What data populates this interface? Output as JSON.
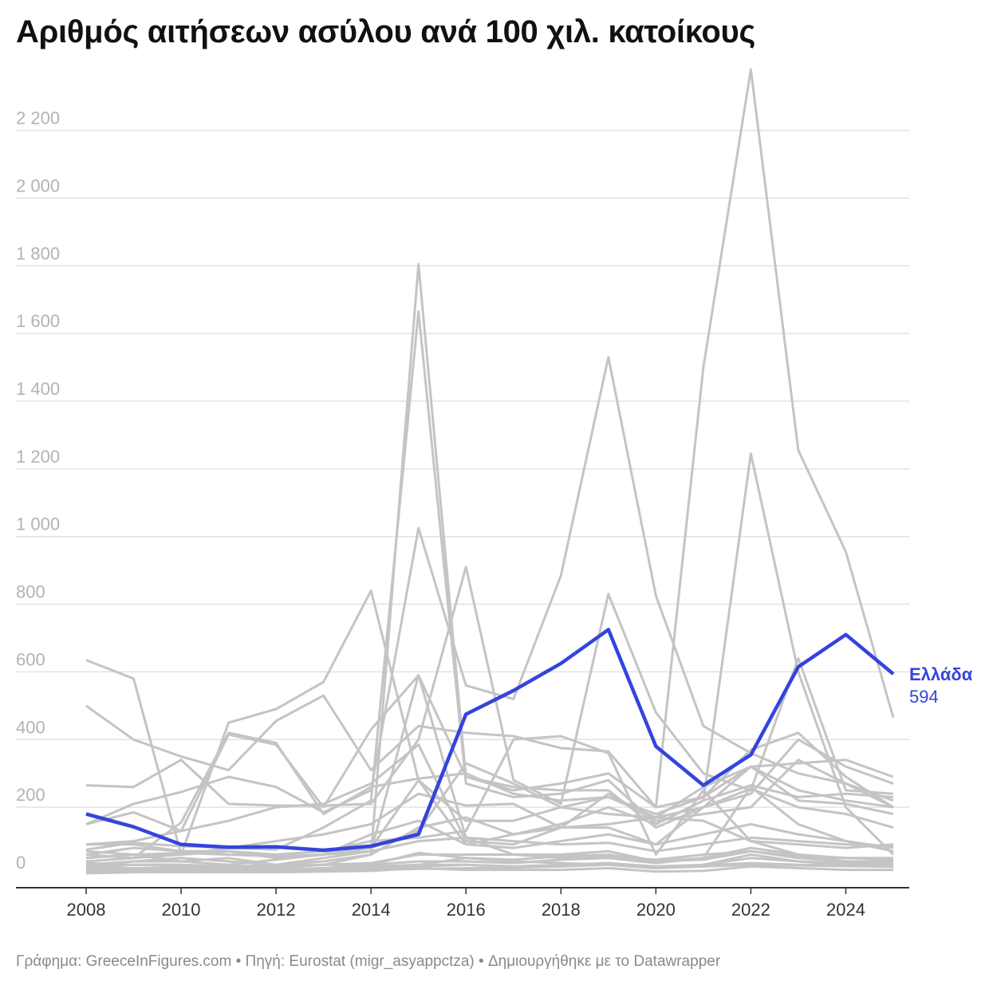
{
  "title": "Αριθμός αιτήσεων ασύλου ανά 100 χιλ. κατοίκους",
  "footer": "Γράφημα: GreeceInFigures.com • Πηγή: Eurostat (migr_asyappctza) • Δημιουργήθηκε με το Datawrapper",
  "colors": {
    "highlight": "#3344dd",
    "background_lines": "#c4c4c4",
    "grid": "#e2e2e2",
    "axis": "#333333"
  },
  "chart_data": {
    "type": "line",
    "x": [
      2008,
      2009,
      2010,
      2011,
      2012,
      2013,
      2014,
      2015,
      2016,
      2017,
      2018,
      2019,
      2020,
      2021,
      2022,
      2023,
      2024,
      2025
    ],
    "xticks": [
      "2008",
      "2010",
      "2012",
      "2014",
      "2016",
      "2018",
      "2020",
      "2022",
      "2024"
    ],
    "yticks": [
      "0",
      "200",
      "400",
      "600",
      "800",
      "1 000",
      "1 200",
      "1 400",
      "1 600",
      "1 800",
      "2 000",
      "2 200"
    ],
    "ylim": [
      -40,
      2400
    ],
    "grid": true,
    "highlight": {
      "name": "Ελλάδα",
      "value_label": "594",
      "values": [
        180,
        142,
        90,
        82,
        83,
        73,
        85,
        120,
        475,
        545,
        625,
        725,
        380,
        265,
        355,
        615,
        710,
        594
      ]
    },
    "background_series": [
      [
        50,
        60,
        40,
        50,
        30,
        40,
        60,
        1805,
        290,
        250,
        270,
        300,
        200,
        1500,
        2380,
        1255,
        955,
        465
      ],
      [
        75,
        95,
        85,
        80,
        75,
        140,
        220,
        1665,
        270,
        230,
        240,
        280,
        150,
        220,
        1245,
        600,
        200,
        60
      ],
      [
        150,
        210,
        245,
        290,
        260,
        185,
        250,
        1025,
        560,
        520,
        885,
        1530,
        825,
        440,
        360,
        300,
        270,
        200
      ],
      [
        635,
        580,
        60,
        450,
        490,
        570,
        840,
        280,
        160,
        160,
        200,
        230,
        180,
        230,
        320,
        330,
        340,
        290
      ],
      [
        500,
        400,
        350,
        310,
        455,
        530,
        310,
        440,
        420,
        410,
        375,
        365,
        200,
        230,
        370,
        420,
        290,
        200
      ],
      [
        265,
        260,
        340,
        210,
        205,
        205,
        210,
        400,
        910,
        280,
        210,
        830,
        480,
        300,
        250,
        640,
        250,
        240
      ],
      [
        90,
        100,
        130,
        415,
        385,
        200,
        430,
        590,
        290,
        260,
        250,
        250,
        140,
        200,
        240,
        400,
        320,
        270
      ],
      [
        60,
        50,
        155,
        420,
        390,
        180,
        260,
        285,
        300,
        240,
        220,
        230,
        170,
        200,
        320,
        220,
        210,
        180
      ],
      [
        150,
        185,
        130,
        160,
        200,
        210,
        270,
        385,
        100,
        90,
        140,
        150,
        170,
        260,
        320,
        250,
        220,
        200
      ],
      [
        40,
        50,
        60,
        80,
        100,
        120,
        150,
        240,
        205,
        210,
        140,
        140,
        90,
        200,
        255,
        200,
        180,
        140
      ],
      [
        30,
        40,
        40,
        30,
        45,
        60,
        120,
        160,
        90,
        120,
        140,
        240,
        160,
        180,
        200,
        340,
        270,
        220
      ],
      [
        20,
        30,
        30,
        20,
        20,
        30,
        60,
        140,
        170,
        120,
        150,
        200,
        150,
        220,
        265,
        230,
        240,
        230
      ],
      [
        60,
        80,
        70,
        60,
        60,
        70,
        80,
        280,
        90,
        80,
        100,
        120,
        90,
        120,
        150,
        120,
        100,
        80
      ],
      [
        30,
        40,
        50,
        40,
        30,
        50,
        70,
        590,
        110,
        60,
        60,
        70,
        40,
        50,
        260,
        150,
        100,
        70
      ],
      [
        90,
        90,
        70,
        70,
        60,
        70,
        100,
        110,
        130,
        400,
        410,
        360,
        60,
        250,
        100,
        60,
        40,
        40
      ],
      [
        50,
        60,
        60,
        70,
        50,
        60,
        80,
        130,
        330,
        270,
        200,
        180,
        170,
        160,
        100,
        90,
        80,
        90
      ],
      [
        10,
        15,
        15,
        15,
        15,
        20,
        30,
        65,
        50,
        45,
        55,
        60,
        40,
        45,
        70,
        50,
        40,
        35
      ],
      [
        20,
        20,
        20,
        20,
        15,
        20,
        25,
        30,
        30,
        25,
        30,
        35,
        25,
        30,
        60,
        40,
        35,
        30
      ],
      [
        5,
        8,
        8,
        8,
        8,
        10,
        12,
        20,
        15,
        15,
        15,
        20,
        10,
        12,
        25,
        20,
        15,
        15
      ],
      [
        15,
        12,
        10,
        10,
        12,
        15,
        20,
        30,
        50,
        40,
        35,
        30,
        20,
        30,
        50,
        40,
        30,
        25
      ],
      [
        25,
        30,
        25,
        25,
        25,
        30,
        30,
        40,
        40,
        35,
        45,
        50,
        35,
        50,
        80,
        60,
        50,
        45
      ],
      [
        35,
        30,
        30,
        25,
        30,
        30,
        35,
        60,
        60,
        60,
        50,
        55,
        45,
        60,
        70,
        55,
        50,
        50
      ],
      [
        8,
        10,
        10,
        10,
        12,
        12,
        15,
        18,
        20,
        22,
        25,
        30,
        20,
        25,
        30,
        28,
        26,
        24
      ],
      [
        12,
        10,
        12,
        14,
        16,
        18,
        20,
        25,
        30,
        25,
        28,
        32,
        25,
        28,
        35,
        30,
        28,
        26
      ],
      [
        70,
        60,
        65,
        60,
        55,
        60,
        70,
        100,
        110,
        100,
        90,
        95,
        70,
        90,
        110,
        100,
        90,
        85
      ]
    ]
  }
}
